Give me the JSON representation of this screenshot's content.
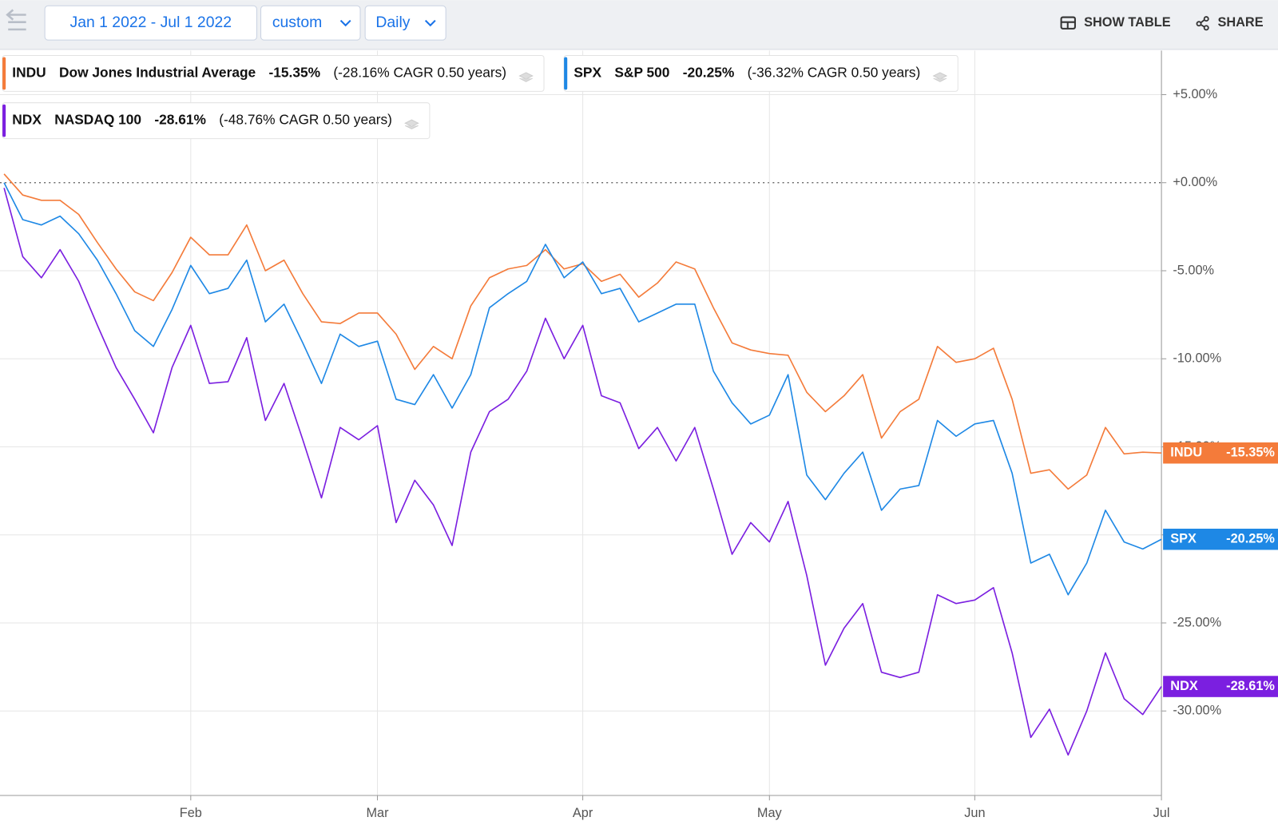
{
  "toolbar": {
    "date_range": "Jan 1 2022 - Jul 1 2022",
    "mode": "custom",
    "frequency": "Daily",
    "show_table": "SHOW TABLE",
    "share": "SHARE"
  },
  "chart_data": {
    "type": "line",
    "categories": [
      null,
      null,
      null,
      null,
      null,
      null,
      null,
      null,
      null,
      null,
      "Feb",
      null,
      null,
      null,
      null,
      null,
      null,
      null,
      null,
      null,
      "Mar",
      null,
      null,
      null,
      null,
      null,
      null,
      null,
      null,
      null,
      null,
      "Apr",
      null,
      null,
      null,
      null,
      null,
      null,
      null,
      null,
      null,
      "May",
      null,
      null,
      null,
      null,
      null,
      null,
      null,
      null,
      null,
      null,
      "Jun",
      null,
      null,
      null,
      null,
      null,
      null,
      null,
      null,
      null,
      "Jul"
    ],
    "ylim": [
      -34.8,
      7.5
    ],
    "yticks": [
      {
        "value": 5,
        "label": "+5.00%"
      },
      {
        "value": 0,
        "label": "+0.00%"
      },
      {
        "value": -5,
        "label": "-5.00%"
      },
      {
        "value": -10,
        "label": "-10.00%"
      },
      {
        "value": -15,
        "label": "-15.00%"
      },
      {
        "value": -20,
        "label": "-20.00%"
      },
      {
        "value": -25,
        "label": "-25.00%"
      },
      {
        "value": -30,
        "label": "-30.00%"
      }
    ],
    "grid": true,
    "series": [
      {
        "symbol": "INDU",
        "name": "Dow Jones Industrial Average",
        "color": "#f47b3a",
        "change_label": "-15.35%",
        "cagr_label": "(-28.16% CAGR 0.50 years)",
        "values": [
          0.5,
          -0.7,
          -1.0,
          -1.0,
          -1.8,
          -3.4,
          -4.9,
          -6.2,
          -6.7,
          -5.1,
          -3.1,
          -4.1,
          -4.1,
          -2.4,
          -5.0,
          -4.4,
          -6.3,
          -7.9,
          -8.0,
          -7.4,
          -7.4,
          -8.6,
          -10.6,
          -9.3,
          -10.0,
          -7.0,
          -5.4,
          -4.9,
          -4.7,
          -3.8,
          -4.9,
          -4.6,
          -5.6,
          -5.2,
          -6.5,
          -5.7,
          -4.5,
          -4.9,
          -7.1,
          -9.1,
          -9.5,
          -9.7,
          -9.8,
          -11.9,
          -13.0,
          -12.1,
          -10.9,
          -14.5,
          -13.0,
          -12.3,
          -9.3,
          -10.2,
          -10.0,
          -9.4,
          -12.3,
          -16.5,
          -16.3,
          -17.4,
          -16.6,
          -13.9,
          -15.4,
          -15.3,
          -15.35
        ]
      },
      {
        "symbol": "SPX",
        "name": "S&P 500",
        "color": "#1e88e5",
        "change_label": "-20.25%",
        "cagr_label": "(-36.32% CAGR 0.50 years)",
        "values": [
          0,
          -2.1,
          -2.4,
          -1.9,
          -2.9,
          -4.4,
          -6.3,
          -8.4,
          -9.3,
          -7.2,
          -4.7,
          -6.3,
          -6.0,
          -4.4,
          -7.9,
          -6.9,
          -9.1,
          -11.4,
          -8.6,
          -9.3,
          -9.0,
          -12.3,
          -12.6,
          -10.9,
          -12.8,
          -10.9,
          -7.1,
          -6.3,
          -5.6,
          -3.5,
          -5.4,
          -4.5,
          -6.3,
          -6.0,
          -7.9,
          -7.4,
          -6.9,
          -6.9,
          -10.7,
          -12.5,
          -13.7,
          -13.2,
          -10.9,
          -16.6,
          -18.0,
          -16.5,
          -15.3,
          -18.6,
          -17.4,
          -17.2,
          -13.5,
          -14.4,
          -13.7,
          -13.5,
          -16.5,
          -21.6,
          -21.1,
          -23.4,
          -21.6,
          -18.6,
          -20.4,
          -20.8,
          -20.25
        ]
      },
      {
        "symbol": "NDX",
        "name": "NASDAQ 100",
        "color": "#7b1fe0",
        "change_label": "-28.61%",
        "cagr_label": "(-48.76% CAGR 0.50 years)",
        "values": [
          -0.3,
          -4.2,
          -5.4,
          -3.8,
          -5.6,
          -8.1,
          -10.5,
          -12.3,
          -14.2,
          -10.5,
          -8.1,
          -11.4,
          -11.3,
          -8.8,
          -13.5,
          -11.4,
          -14.6,
          -17.9,
          -13.9,
          -14.6,
          -13.8,
          -19.3,
          -16.9,
          -18.3,
          -20.6,
          -15.3,
          -13.0,
          -12.3,
          -10.7,
          -7.7,
          -10.0,
          -8.1,
          -12.1,
          -12.5,
          -15.1,
          -13.9,
          -15.8,
          -13.9,
          -17.4,
          -21.1,
          -19.3,
          -20.4,
          -18.1,
          -22.3,
          -27.4,
          -25.3,
          -23.9,
          -27.8,
          -28.1,
          -27.8,
          -23.4,
          -23.9,
          -23.7,
          -23.0,
          -26.7,
          -31.5,
          -29.9,
          -32.5,
          -30.0,
          -26.7,
          -29.3,
          -30.2,
          -28.61
        ]
      }
    ]
  }
}
